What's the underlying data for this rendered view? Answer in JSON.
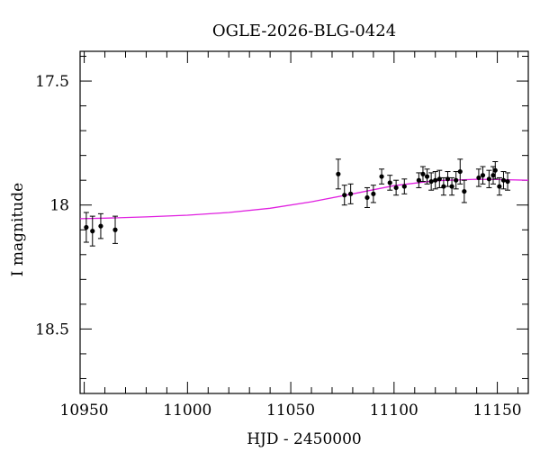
{
  "chart_data": {
    "type": "scatter",
    "title": "OGLE-2026-BLG-0424",
    "xlabel": "HJD - 2450000",
    "ylabel": "I magnitude",
    "xlim": [
      10948,
      11165
    ],
    "ylim": [
      18.76,
      17.38
    ],
    "y_inverted": true,
    "x_ticks": [
      10950,
      11000,
      11050,
      11100,
      11150
    ],
    "x_tick_labels": [
      "10950",
      "11000",
      "11050",
      "11100",
      "11150"
    ],
    "y_ticks": [
      17.5,
      18,
      18.5
    ],
    "y_tick_labels": [
      "17.5",
      "18",
      "18.5"
    ],
    "grid": false,
    "series": [
      {
        "kind": "points_with_errorbars",
        "color": "#000000",
        "points": [
          {
            "x": 10951,
            "y": 18.09,
            "err": 0.06
          },
          {
            "x": 10954,
            "y": 18.105,
            "err": 0.06
          },
          {
            "x": 10958,
            "y": 18.085,
            "err": 0.05
          },
          {
            "x": 10965,
            "y": 18.1,
            "err": 0.055
          },
          {
            "x": 11073,
            "y": 17.875,
            "err": 0.06
          },
          {
            "x": 11076,
            "y": 17.96,
            "err": 0.04
          },
          {
            "x": 11079,
            "y": 17.955,
            "err": 0.04
          },
          {
            "x": 11087,
            "y": 17.97,
            "err": 0.04
          },
          {
            "x": 11090,
            "y": 17.955,
            "err": 0.035
          },
          {
            "x": 11094,
            "y": 17.885,
            "err": 0.03
          },
          {
            "x": 11098,
            "y": 17.91,
            "err": 0.03
          },
          {
            "x": 11101,
            "y": 17.93,
            "err": 0.03
          },
          {
            "x": 11105,
            "y": 17.925,
            "err": 0.03
          },
          {
            "x": 11112,
            "y": 17.9,
            "err": 0.03
          },
          {
            "x": 11114,
            "y": 17.875,
            "err": 0.03
          },
          {
            "x": 11116,
            "y": 17.885,
            "err": 0.03
          },
          {
            "x": 11118,
            "y": 17.905,
            "err": 0.035
          },
          {
            "x": 11120,
            "y": 17.9,
            "err": 0.035
          },
          {
            "x": 11122,
            "y": 17.895,
            "err": 0.035
          },
          {
            "x": 11124,
            "y": 17.925,
            "err": 0.035
          },
          {
            "x": 11126,
            "y": 17.895,
            "err": 0.03
          },
          {
            "x": 11128,
            "y": 17.925,
            "err": 0.035
          },
          {
            "x": 11130,
            "y": 17.9,
            "err": 0.035
          },
          {
            "x": 11132,
            "y": 17.865,
            "err": 0.05
          },
          {
            "x": 11134,
            "y": 17.945,
            "err": 0.045
          },
          {
            "x": 11141,
            "y": 17.89,
            "err": 0.035
          },
          {
            "x": 11143,
            "y": 17.88,
            "err": 0.035
          },
          {
            "x": 11146,
            "y": 17.895,
            "err": 0.035
          },
          {
            "x": 11148,
            "y": 17.88,
            "err": 0.035
          },
          {
            "x": 11149,
            "y": 17.86,
            "err": 0.035
          },
          {
            "x": 11151,
            "y": 17.925,
            "err": 0.035
          },
          {
            "x": 11153,
            "y": 17.9,
            "err": 0.035
          },
          {
            "x": 11155,
            "y": 17.905,
            "err": 0.035
          }
        ]
      },
      {
        "kind": "model_curve",
        "color": "#e020e0",
        "x": [
          10948,
          10960,
          10980,
          11000,
          11020,
          11040,
          11060,
          11080,
          11100,
          11120,
          11140,
          11150,
          11165
        ],
        "y": [
          18.055,
          18.053,
          18.048,
          18.041,
          18.03,
          18.013,
          17.987,
          17.955,
          17.922,
          17.902,
          17.896,
          17.897,
          17.9
        ]
      }
    ]
  }
}
